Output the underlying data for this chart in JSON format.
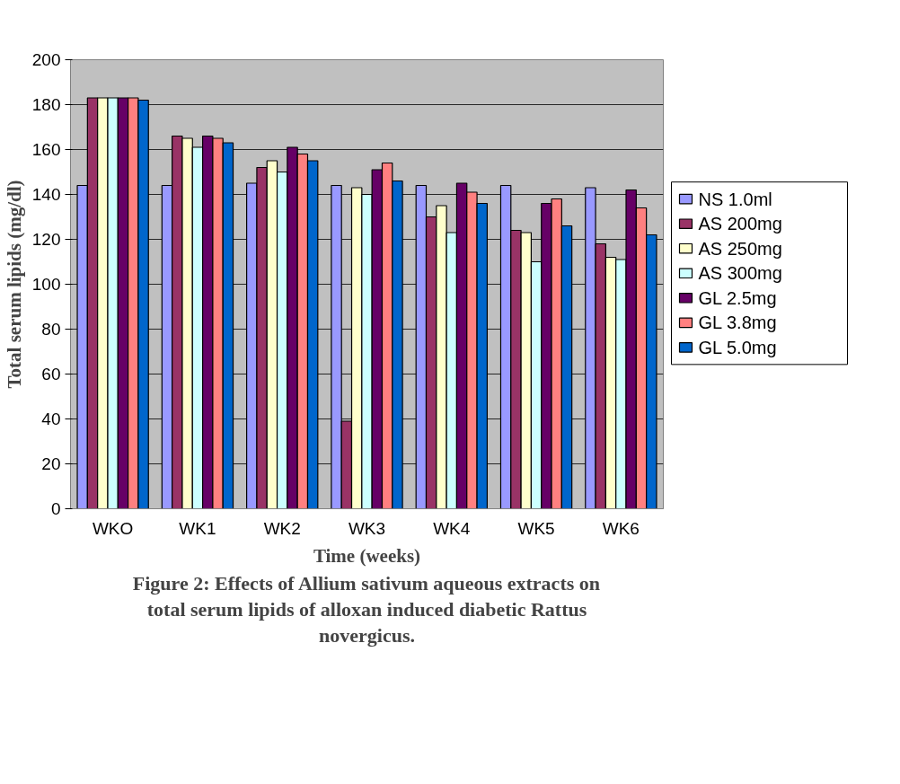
{
  "chart_data": {
    "type": "bar",
    "xlabel": "Time (weeks)",
    "ylabel": "Total serum lipids (mg/dl)",
    "annotations": [
      "Figure 2: Effects of Allium sativum aqueous extracts on total serum lipids of alloxan induced diabetic Rattus novergicus."
    ],
    "categories": [
      "WKO",
      "WK1",
      "WK2",
      "WK3",
      "WK4",
      "WK5",
      "WK6"
    ],
    "series": [
      {
        "name": "NS 1.0ml",
        "color": "#9999ff",
        "values": [
          144,
          144,
          145,
          144,
          144,
          144,
          143
        ]
      },
      {
        "name": "AS 200mg",
        "color": "#993366",
        "values": [
          183,
          166,
          152,
          39,
          130,
          124,
          118
        ]
      },
      {
        "name": "AS 250mg",
        "color": "#ffffcc",
        "values": [
          183,
          165,
          155,
          143,
          135,
          123,
          112
        ]
      },
      {
        "name": "AS 300mg",
        "color": "#ccffff",
        "values": [
          183,
          161,
          150,
          140,
          123,
          110,
          111
        ]
      },
      {
        "name": "GL 2.5mg",
        "color": "#660066",
        "values": [
          183,
          166,
          161,
          151,
          145,
          136,
          142
        ]
      },
      {
        "name": "GL 3.8mg",
        "color": "#ff8080",
        "values": [
          183,
          165,
          158,
          154,
          141,
          138,
          134
        ]
      },
      {
        "name": "GL 5.0mg",
        "color": "#0066cc",
        "values": [
          182,
          163,
          155,
          146,
          136,
          126,
          122
        ]
      }
    ],
    "ylim": [
      0,
      200
    ],
    "yticks": [
      0,
      20,
      40,
      60,
      80,
      100,
      120,
      140,
      160,
      180,
      200
    ],
    "grid": "y",
    "legend": "right"
  }
}
